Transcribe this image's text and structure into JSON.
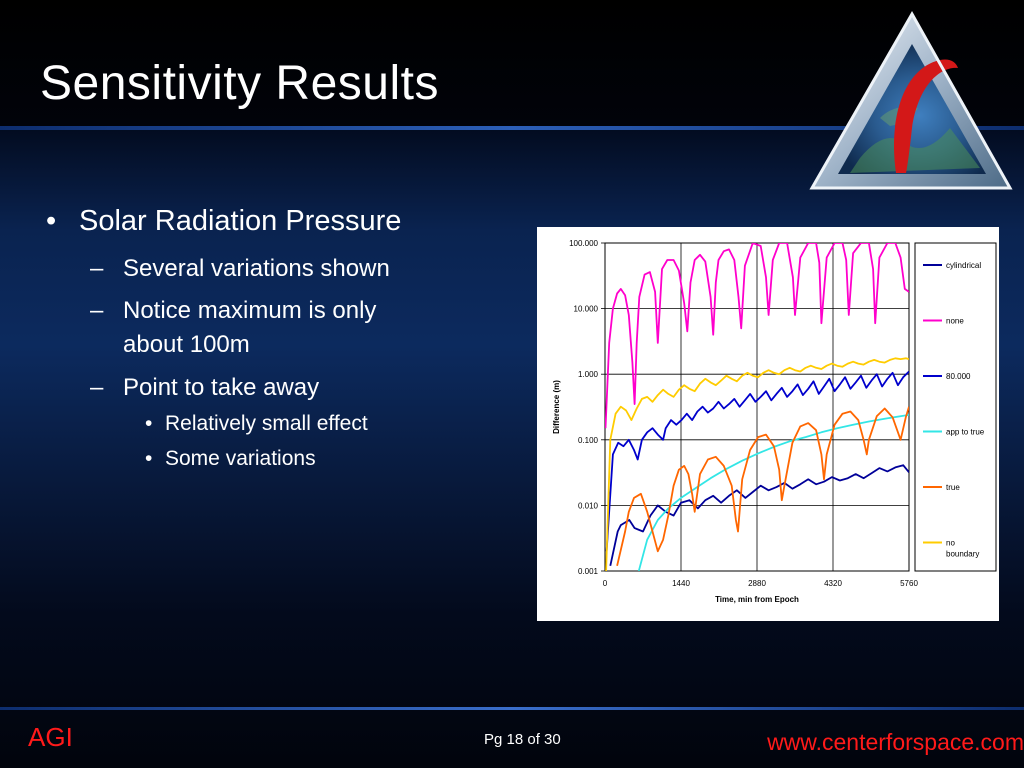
{
  "slide": {
    "title": "Sensitivity Results",
    "bullets": [
      {
        "level": 1,
        "marker": "•",
        "text": "Solar Radiation Pressure"
      },
      {
        "level": 2,
        "marker": "–",
        "text": "Several variations shown"
      },
      {
        "level": 2,
        "marker": "–",
        "text": "Notice maximum is only"
      },
      {
        "level": 2,
        "marker": "",
        "text": "about 100m"
      },
      {
        "level": 2,
        "marker": "–",
        "text": "Point to take away"
      },
      {
        "level": 3,
        "marker": "•",
        "text": "Relatively small effect"
      },
      {
        "level": 3,
        "marker": "•",
        "text": "Some variations"
      }
    ]
  },
  "footer": {
    "left": "AGI",
    "page": "Pg 18 of 30",
    "url": "www.centerforspace.com"
  },
  "logo": {
    "icon": "agi-pyramid-logo"
  },
  "chart_data": {
    "type": "line",
    "xlabel": "Time, min from Epoch",
    "ylabel": "Difference (m)",
    "yscale": "log",
    "ylim": [
      0.001,
      100
    ],
    "xlim": [
      0,
      5760
    ],
    "xticks": [
      "0",
      "1440",
      "2880",
      "4320",
      "5760"
    ],
    "yticks": [
      "0.001",
      "0.010",
      "0.100",
      "1.000",
      "10.000",
      "100.000"
    ],
    "grid": true,
    "legend_position": "right",
    "series": [
      {
        "name": "cylindrical",
        "color": "#000099",
        "x": [
          100,
          240,
          300,
          460,
          560,
          720,
          860,
          1000,
          1150,
          1300,
          1440,
          1600,
          1760,
          1900,
          2050,
          2200,
          2350,
          2500,
          2660,
          2800,
          2950,
          3100,
          3250,
          3400,
          3550,
          3700,
          3850,
          4000,
          4150,
          4300,
          4450,
          4600,
          4750,
          4900,
          5050,
          5200,
          5350,
          5500,
          5650,
          5760
        ],
        "y": [
          0.0012,
          0.004,
          0.005,
          0.006,
          0.0045,
          0.004,
          0.007,
          0.01,
          0.008,
          0.007,
          0.011,
          0.012,
          0.009,
          0.012,
          0.014,
          0.011,
          0.014,
          0.017,
          0.013,
          0.016,
          0.02,
          0.017,
          0.019,
          0.022,
          0.018,
          0.021,
          0.025,
          0.021,
          0.023,
          0.027,
          0.024,
          0.026,
          0.03,
          0.026,
          0.031,
          0.037,
          0.033,
          0.038,
          0.041,
          0.032
        ]
      },
      {
        "name": "none",
        "color": "#ff00cc",
        "x": [
          10,
          80,
          150,
          230,
          300,
          380,
          450,
          520,
          560,
          600,
          650,
          750,
          850,
          950,
          1000,
          1080,
          1180,
          1300,
          1400,
          1500,
          1560,
          1620,
          1700,
          1800,
          1900,
          2000,
          2050,
          2100,
          2150,
          2250,
          2350,
          2450,
          2530,
          2580,
          2650,
          2800,
          2950,
          3050,
          3100,
          3180,
          3300,
          3450,
          3560,
          3600,
          3700,
          3850,
          4000,
          4060,
          4100,
          4200,
          4350,
          4500,
          4570,
          4620,
          4700,
          4850,
          5000,
          5080,
          5120,
          5200,
          5350,
          5500,
          5600,
          5680,
          5760
        ],
        "y": [
          0.15,
          3,
          10,
          17,
          20,
          16,
          8,
          1.5,
          0.35,
          3,
          15,
          33,
          36,
          18,
          3,
          40,
          55,
          55,
          38,
          12,
          4.5,
          25,
          55,
          66,
          52,
          15,
          4,
          25,
          55,
          75,
          80,
          55,
          15,
          5,
          45,
          100,
          90,
          30,
          8,
          55,
          100,
          100,
          30,
          8,
          60,
          100,
          100,
          50,
          6,
          60,
          100,
          100,
          55,
          8,
          70,
          100,
          100,
          40,
          6,
          60,
          100,
          100,
          60,
          20,
          18
        ]
      },
      {
        "name": "80.000",
        "color": "#0000cc",
        "x": [
          30,
          150,
          250,
          350,
          450,
          550,
          620,
          700,
          800,
          900,
          1000,
          1100,
          1150,
          1250,
          1350,
          1450,
          1550,
          1650,
          1750,
          1850,
          1950,
          2050,
          2150,
          2250,
          2350,
          2450,
          2550,
          2650,
          2750,
          2850,
          2950,
          3050,
          3150,
          3250,
          3350,
          3450,
          3550,
          3650,
          3750,
          3850,
          3950,
          4050,
          4150,
          4250,
          4350,
          4450,
          4550,
          4650,
          4750,
          4850,
          4950,
          5050,
          5150,
          5250,
          5350,
          5450,
          5550,
          5650,
          5760
        ],
        "y": [
          0.002,
          0.06,
          0.09,
          0.08,
          0.1,
          0.07,
          0.05,
          0.1,
          0.13,
          0.15,
          0.12,
          0.1,
          0.15,
          0.2,
          0.17,
          0.2,
          0.25,
          0.2,
          0.27,
          0.32,
          0.26,
          0.3,
          0.38,
          0.3,
          0.35,
          0.42,
          0.32,
          0.4,
          0.5,
          0.38,
          0.45,
          0.55,
          0.4,
          0.5,
          0.62,
          0.45,
          0.55,
          0.7,
          0.48,
          0.6,
          0.78,
          0.5,
          0.65,
          0.85,
          0.55,
          0.7,
          0.9,
          0.6,
          0.75,
          0.95,
          0.62,
          0.8,
          1.0,
          0.65,
          0.85,
          1.05,
          0.68,
          0.9,
          1.1
        ]
      },
      {
        "name": "app to true",
        "color": "#33e6e6",
        "x": [
          640,
          800,
          1000,
          1200,
          1440,
          1700,
          2000,
          2300,
          2600,
          2900,
          3200,
          3500,
          3800,
          4100,
          4400,
          4700,
          5000,
          5300,
          5760
        ],
        "y": [
          0.001,
          0.003,
          0.006,
          0.009,
          0.013,
          0.018,
          0.026,
          0.036,
          0.048,
          0.062,
          0.078,
          0.095,
          0.11,
          0.13,
          0.15,
          0.17,
          0.19,
          0.21,
          0.24
        ]
      },
      {
        "name": "true",
        "color": "#ff6600",
        "x": [
          230,
          380,
          450,
          550,
          680,
          800,
          900,
          1000,
          1100,
          1200,
          1300,
          1400,
          1500,
          1580,
          1650,
          1700,
          1800,
          1950,
          2100,
          2250,
          2400,
          2480,
          2520,
          2600,
          2750,
          2900,
          3050,
          3200,
          3300,
          3350,
          3400,
          3550,
          3700,
          3850,
          4000,
          4100,
          4150,
          4200,
          4350,
          4500,
          4650,
          4800,
          4900,
          4960,
          5000,
          5150,
          5300,
          5450,
          5600,
          5700,
          5760
        ],
        "y": [
          0.0012,
          0.004,
          0.008,
          0.013,
          0.015,
          0.008,
          0.004,
          0.002,
          0.003,
          0.007,
          0.02,
          0.035,
          0.04,
          0.03,
          0.015,
          0.008,
          0.03,
          0.05,
          0.055,
          0.04,
          0.02,
          0.006,
          0.004,
          0.025,
          0.07,
          0.11,
          0.12,
          0.08,
          0.035,
          0.012,
          0.02,
          0.09,
          0.16,
          0.18,
          0.14,
          0.06,
          0.025,
          0.06,
          0.17,
          0.25,
          0.27,
          0.2,
          0.1,
          0.06,
          0.1,
          0.23,
          0.3,
          0.22,
          0.1,
          0.22,
          0.32
        ]
      },
      {
        "name": "no\nboundary",
        "color": "#ffcc00",
        "x": [
          20,
          100,
          200,
          300,
          400,
          500,
          600,
          700,
          800,
          900,
          1000,
          1100,
          1200,
          1300,
          1400,
          1500,
          1600,
          1700,
          1800,
          1900,
          2000,
          2100,
          2200,
          2300,
          2400,
          2500,
          2600,
          2700,
          2800,
          2900,
          3000,
          3100,
          3200,
          3300,
          3400,
          3500,
          3600,
          3700,
          3800,
          3900,
          4000,
          4100,
          4200,
          4300,
          4400,
          4500,
          4600,
          4700,
          4800,
          4900,
          5000,
          5100,
          5200,
          5300,
          5400,
          5500,
          5600,
          5700,
          5760
        ],
        "y": [
          0.001,
          0.1,
          0.25,
          0.32,
          0.28,
          0.2,
          0.3,
          0.42,
          0.45,
          0.38,
          0.48,
          0.58,
          0.5,
          0.45,
          0.58,
          0.68,
          0.6,
          0.55,
          0.72,
          0.85,
          0.75,
          0.68,
          0.8,
          0.95,
          0.85,
          0.78,
          0.95,
          1.05,
          0.95,
          0.9,
          1.05,
          1.15,
          1.05,
          1.0,
          1.15,
          1.25,
          1.15,
          1.1,
          1.25,
          1.35,
          1.25,
          1.2,
          1.35,
          1.45,
          1.35,
          1.3,
          1.45,
          1.55,
          1.45,
          1.4,
          1.55,
          1.65,
          1.55,
          1.5,
          1.65,
          1.75,
          1.7,
          1.75,
          1.7
        ]
      }
    ]
  }
}
